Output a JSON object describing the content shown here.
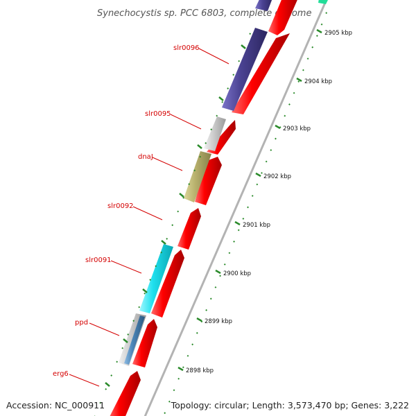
{
  "title": "Synechocystis sp. PCC 6803, complete genome",
  "footer": {
    "accession": "Accession: NC_000911",
    "topology": "Topology: circular; Length: 3,573,470 bp; Genes: 3,222"
  },
  "scale": {
    "kbp_ticks": [
      "2905 kbp",
      "2904 kbp",
      "2903 kbp",
      "2902 kbp",
      "2901 kbp",
      "2900 kbp",
      "2899 kbp",
      "2898 kbp"
    ]
  },
  "genes": [
    {
      "label": "slr0096",
      "color": "#4b4393"
    },
    {
      "label": "slr0095",
      "color": "#c8c8c8"
    },
    {
      "label": "dnaJ",
      "color": "#b9b26e"
    },
    {
      "label": "slr0092",
      "color": null
    },
    {
      "label": "slr0091",
      "color": "#1fe0ee"
    },
    {
      "label": "ppd",
      "color": "#4c86b8"
    },
    {
      "label": "erg6",
      "color": null
    }
  ],
  "colors": {
    "cds_forward": "#ee0000",
    "genome_line": "#b3b3b3",
    "tick_marks": "#2a8a2a",
    "label_text": "#d40000",
    "top_gene": "#22dd99"
  }
}
